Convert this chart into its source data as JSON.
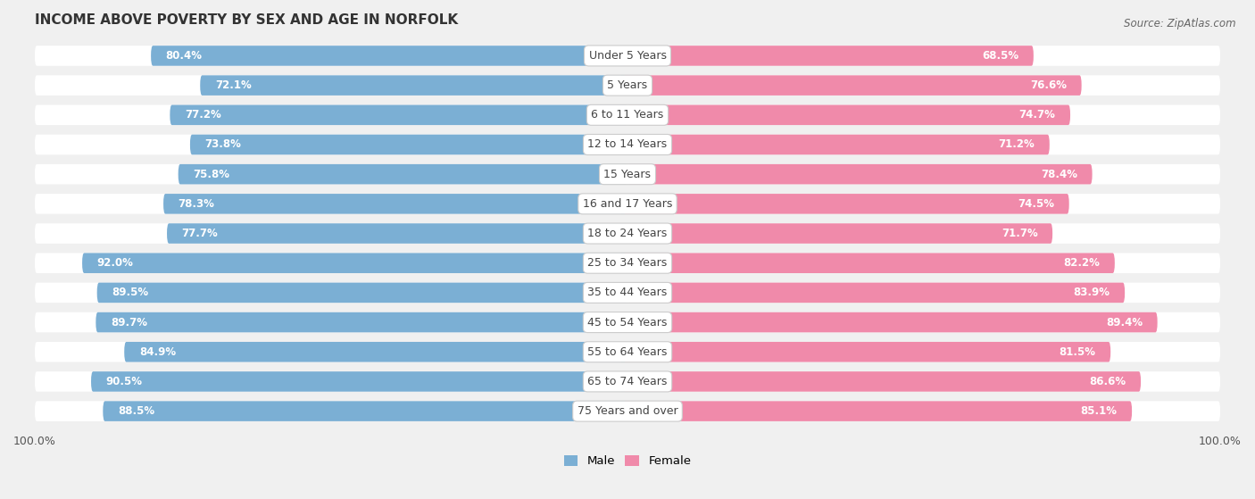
{
  "title": "INCOME ABOVE POVERTY BY SEX AND AGE IN NORFOLK",
  "source": "Source: ZipAtlas.com",
  "categories": [
    "Under 5 Years",
    "5 Years",
    "6 to 11 Years",
    "12 to 14 Years",
    "15 Years",
    "16 and 17 Years",
    "18 to 24 Years",
    "25 to 34 Years",
    "35 to 44 Years",
    "45 to 54 Years",
    "55 to 64 Years",
    "65 to 74 Years",
    "75 Years and over"
  ],
  "male_values": [
    80.4,
    72.1,
    77.2,
    73.8,
    75.8,
    78.3,
    77.7,
    92.0,
    89.5,
    89.7,
    84.9,
    90.5,
    88.5
  ],
  "female_values": [
    68.5,
    76.6,
    74.7,
    71.2,
    78.4,
    74.5,
    71.7,
    82.2,
    83.9,
    89.4,
    81.5,
    86.6,
    85.1
  ],
  "male_color": "#7bafd4",
  "female_color": "#f08aaa",
  "male_label": "Male",
  "female_label": "Female",
  "background_color": "#f0f0f0",
  "row_bg_color": "#ffffff",
  "axis_max": 100.0,
  "title_fontsize": 11,
  "label_fontsize": 9,
  "tick_fontsize": 9,
  "value_fontsize": 8.5
}
